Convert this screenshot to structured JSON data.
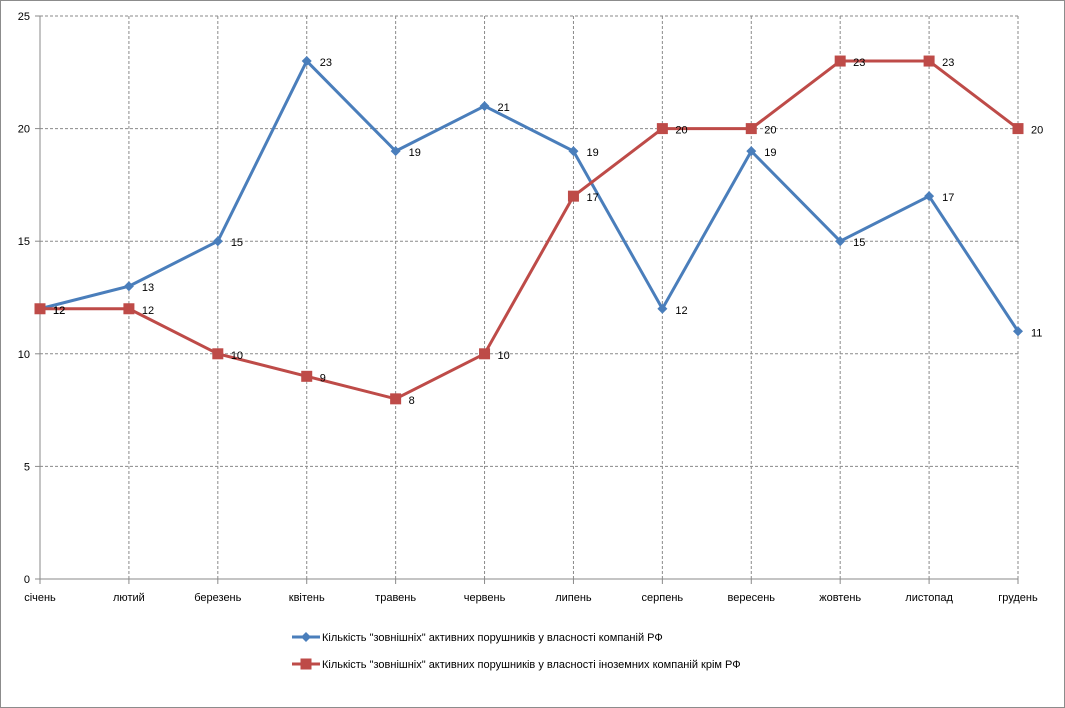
{
  "chart_data": {
    "type": "line",
    "title": "",
    "xlabel": "",
    "ylabel": "",
    "categories": [
      "січень",
      "лютий",
      "березень",
      "квітень",
      "травень",
      "червень",
      "липень",
      "серпень",
      "вересень",
      "жовтень",
      "листопад",
      "грудень"
    ],
    "ylim": [
      0,
      25
    ],
    "yticks": [
      0,
      5,
      10,
      15,
      20,
      25
    ],
    "grid": true,
    "legend_position": "bottom",
    "series": [
      {
        "name": "Кількість \"зовнішніх\" активних порушників у власності компаній РФ",
        "values": [
          12,
          13,
          15,
          23,
          19,
          21,
          19,
          12,
          19,
          15,
          17,
          11
        ],
        "color": "#4a7ebb",
        "marker": "diamond"
      },
      {
        "name": "Кількість \"зовнішніх\" активних порушників у власності іноземних компаній крім РФ",
        "values": [
          12,
          12,
          10,
          9,
          8,
          10,
          17,
          20,
          20,
          23,
          23,
          20
        ],
        "color": "#be4b48",
        "marker": "square"
      }
    ]
  }
}
